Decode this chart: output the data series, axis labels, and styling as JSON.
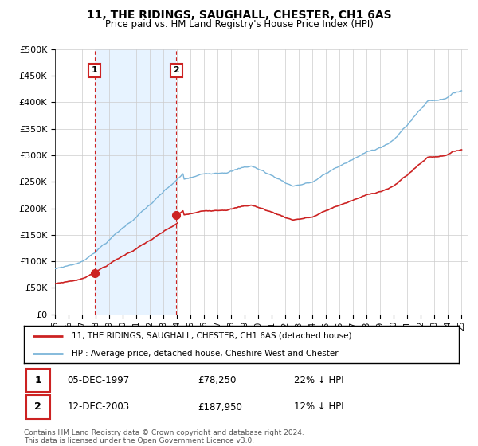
{
  "title": "11, THE RIDINGS, SAUGHALL, CHESTER, CH1 6AS",
  "subtitle": "Price paid vs. HM Land Registry's House Price Index (HPI)",
  "legend_line1": "11, THE RIDINGS, SAUGHALL, CHESTER, CH1 6AS (detached house)",
  "legend_line2": "HPI: Average price, detached house, Cheshire West and Chester",
  "sale1_label": "1",
  "sale1_date": "05-DEC-1997",
  "sale1_price": "£78,250",
  "sale1_hpi": "22% ↓ HPI",
  "sale2_label": "2",
  "sale2_date": "12-DEC-2003",
  "sale2_price": "£187,950",
  "sale2_hpi": "12% ↓ HPI",
  "footnote": "Contains HM Land Registry data © Crown copyright and database right 2024.\nThis data is licensed under the Open Government Licence v3.0.",
  "hpi_color": "#7ab4d8",
  "sale_color": "#cc2222",
  "marker_color": "#cc2222",
  "dashed_color": "#cc2222",
  "shade_color": "#ddeeff",
  "background_color": "#ffffff",
  "grid_color": "#cccccc",
  "ylim": [
    0,
    500000
  ],
  "yticks": [
    0,
    50000,
    100000,
    150000,
    200000,
    250000,
    300000,
    350000,
    400000,
    450000,
    500000
  ],
  "sale1_x": 1997.92,
  "sale1_y": 78250,
  "sale2_x": 2003.95,
  "sale2_y": 187950,
  "xmin": 1995.0,
  "xmax": 2025.5
}
